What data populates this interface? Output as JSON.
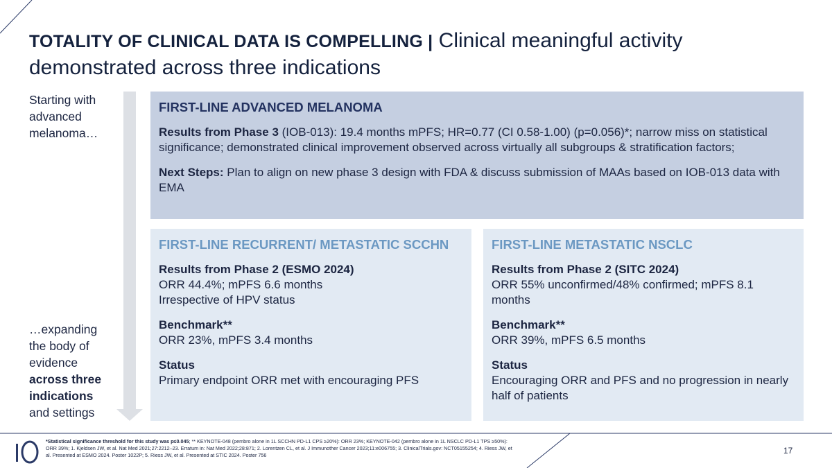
{
  "header": {
    "title_bold": "TOTALITY OF CLINICAL DATA IS COMPELLING |",
    "title_rest": "Clinical meaningful activity demonstrated across three indications"
  },
  "sidebar": {
    "top": "Starting with advanced melanoma…",
    "bottom_start": "…expanding the body of evidence",
    "bottom_bold": "across three indications",
    "bottom_end": "and settings"
  },
  "panels": [
    {
      "title": "FIRST-LINE ADVANCED MELANOMA",
      "sections": [
        {
          "label": "Results from Phase 3",
          "text": "(IOB-013): 19.4 months mPFS; HR=0.77 (CI 0.58-1.00) (p=0.056)*; narrow miss on statistical significance; demonstrated clinical improvement observed across virtually all subgroups & stratification factors;"
        },
        {
          "label": "Next Steps:",
          "text": "Plan to align on new phase 3 design with FDA & discuss submission of MAAs based on IOB-013 data with EMA"
        }
      ]
    },
    {
      "title": "FIRST-LINE RECURRENT/ METASTATIC SCCHN",
      "sections": [
        {
          "label": "Results from Phase 2 (ESMO 2024)",
          "lines": [
            "ORR 44.4%; mPFS 6.6 months",
            "Irrespective of HPV status"
          ]
        },
        {
          "label": "Benchmark**",
          "lines": [
            "ORR 23%, mPFS 3.4 months"
          ]
        },
        {
          "label": "Status",
          "lines": [
            "Primary endpoint ORR met with encouraging PFS"
          ]
        }
      ]
    },
    {
      "title": "FIRST-LINE METASTATIC NSCLC",
      "sections": [
        {
          "label": "Results from Phase 2 (SITC 2024)",
          "lines": [
            "ORR 55% unconfirmed/48% confirmed; mPFS 8.1 months"
          ]
        },
        {
          "label": "Benchmark**",
          "lines": [
            "ORR 39%, mPFS 6.5 months"
          ]
        },
        {
          "label": "Status",
          "lines": [
            "Encouraging ORR and PFS and no progression in nearly half of patients"
          ]
        }
      ]
    }
  ],
  "footnote": {
    "bold": "*Statistical significance threshold for this study was p≤0.045",
    "text": "; ** KEYNOTE-048 (pembro alone in 1L SCCHN PD-L1 CPS ≥20%): ORR 23%; KEYNOTE-042 (pembro alone in 1L NSCLC PD-L1 TPS ≥50%): ORR 39%; 1. Kjeldsen JW, et al. Nat Med 2021;27:2212–23. Erratum in: Nat Med 2022;28:871; 2. Lorentzen CL, et al. J Immunother Cancer 2023;11:e006755; 3. ClinicalTrials.gov: NCT05155254; 4. Riess JW, et al. Presented at ESMO 2024. Poster 1022P; 5. Riess JW, et al. Presented at STIC 2024. Poster 756"
  },
  "page_number": "17"
}
